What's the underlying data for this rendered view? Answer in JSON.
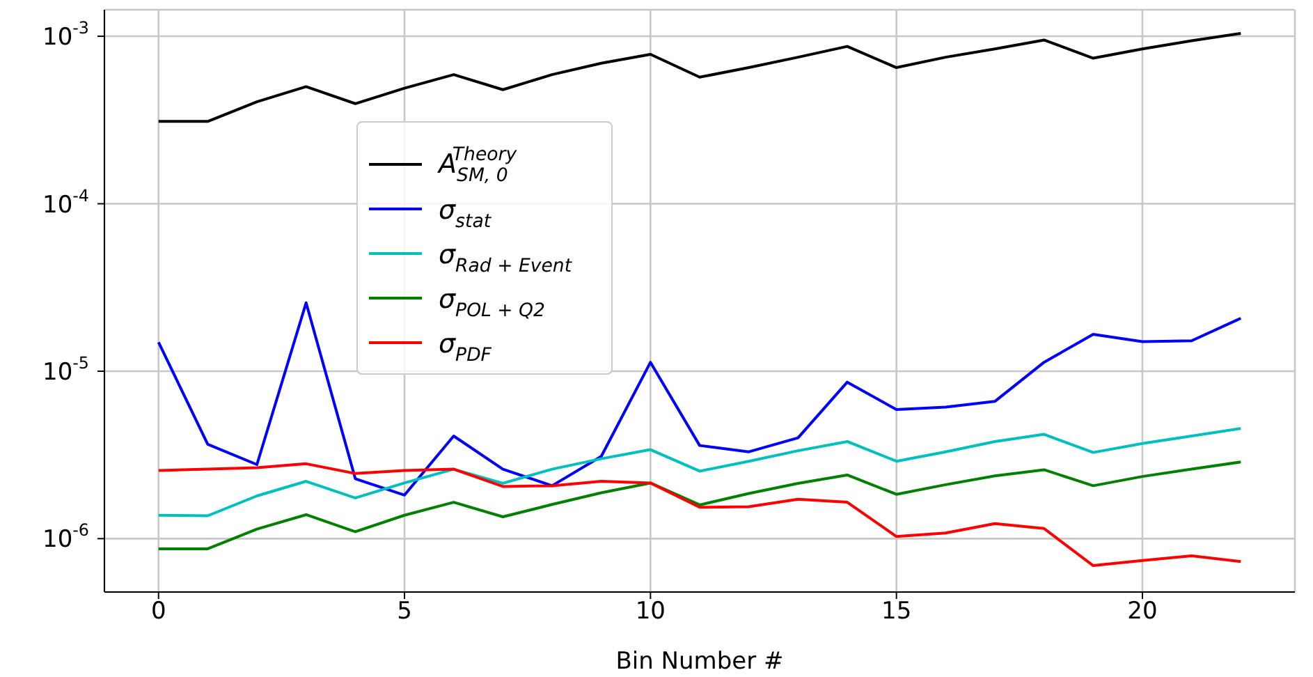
{
  "chart_data": {
    "type": "line",
    "xlabel": "Bin Number #",
    "x": [
      0,
      1,
      2,
      3,
      4,
      5,
      6,
      7,
      8,
      9,
      10,
      11,
      12,
      13,
      14,
      15,
      16,
      17,
      18,
      19,
      20,
      21,
      22
    ],
    "series": [
      {
        "name": "A$_{SM, 0}$$^{Theory}$",
        "color": "#000000",
        "values": [
          0.00031,
          0.00031,
          0.000406,
          0.0005,
          0.000396,
          0.00049,
          0.00059,
          0.00048,
          0.00059,
          0.00069,
          0.00078,
          0.00057,
          0.00065,
          0.00075,
          0.00087,
          0.00065,
          0.00075,
          0.00084,
          0.00095,
          0.00074,
          0.00084,
          0.00094,
          0.00104
        ]
      },
      {
        "name": "σ$_{stat}$",
        "color": "#0000ff",
        "values": [
          1.49e-05,
          3.66e-06,
          2.77e-06,
          2.56e-05,
          2.28e-06,
          1.82e-06,
          4.1e-06,
          2.6e-06,
          2.07e-06,
          3.1e-06,
          1.13e-05,
          3.6e-06,
          3.3e-06,
          4e-06,
          8.6e-06,
          5.9e-06,
          6.1e-06,
          6.6e-06,
          1.13e-05,
          1.66e-05,
          1.5e-05,
          1.52e-05,
          2.07e-05
        ]
      },
      {
        "name": "σ$_{Rad + Event}$",
        "color": "#00bfbf",
        "values": [
          1.38e-06,
          1.37e-06,
          1.8e-06,
          2.2e-06,
          1.75e-06,
          2.15e-06,
          2.6e-06,
          2.14e-06,
          2.6e-06,
          3e-06,
          3.4e-06,
          2.53e-06,
          2.9e-06,
          3.35e-06,
          3.8e-06,
          2.9e-06,
          3.3e-06,
          3.8e-06,
          4.2e-06,
          3.27e-06,
          3.7e-06,
          4.1e-06,
          4.55e-06
        ]
      },
      {
        "name": "σ$_{POL + Q2}$",
        "color": "#008000",
        "values": [
          8.7e-07,
          8.7e-07,
          1.14e-06,
          1.39e-06,
          1.1e-06,
          1.38e-06,
          1.65e-06,
          1.35e-06,
          1.6e-06,
          1.88e-06,
          2.15e-06,
          1.59e-06,
          1.86e-06,
          2.14e-06,
          2.4e-06,
          1.84e-06,
          2.1e-06,
          2.37e-06,
          2.58e-06,
          2.07e-06,
          2.35e-06,
          2.6e-06,
          2.87e-06
        ]
      },
      {
        "name": "σ$_{PDF}$",
        "color": "#ff0000",
        "values": [
          2.55e-06,
          2.6e-06,
          2.65e-06,
          2.8e-06,
          2.45e-06,
          2.55e-06,
          2.6e-06,
          2.05e-06,
          2.07e-06,
          2.2e-06,
          2.15e-06,
          1.54e-06,
          1.55e-06,
          1.72e-06,
          1.65e-06,
          1.03e-06,
          1.08e-06,
          1.23e-06,
          1.15e-06,
          6.9e-07,
          7.4e-07,
          7.9e-07,
          7.3e-07
        ]
      }
    ],
    "xlim": [
      -1.1,
      23.1
    ],
    "xticks": [
      0,
      5,
      10,
      15,
      20
    ],
    "ylim": [
      4.8e-07,
      0.00144
    ],
    "log": true,
    "yticks": [
      {
        "value": 1e-06,
        "label": "10$^{-6}$"
      },
      {
        "value": 1e-05,
        "label": "10$^{-5}$"
      },
      {
        "value": 0.0001,
        "label": "10$^{-4}$"
      },
      {
        "value": 0.001,
        "label": "10$^{-3}$"
      }
    ],
    "grid": true,
    "legend": "top left",
    "marker": "none",
    "line_style": "solid"
  }
}
